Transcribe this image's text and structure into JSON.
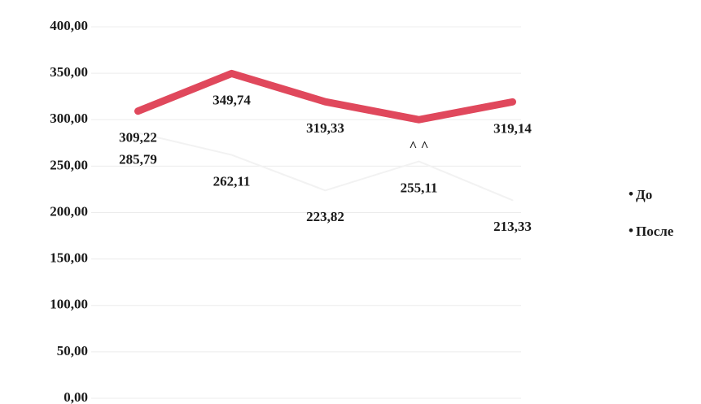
{
  "chart_data": {
    "type": "line",
    "categories": [
      null,
      null,
      null,
      null,
      null
    ],
    "series": [
      {
        "name": "До",
        "color": "#f2f2f2",
        "values": [
          285.79,
          262.11,
          223.82,
          255.11,
          213.33
        ],
        "value_labels": [
          "285,79",
          "262,11",
          "223,82",
          "255,11",
          "213,33"
        ]
      },
      {
        "name": "После",
        "color": "#e0485c",
        "values": [
          309.22,
          349.74,
          319.33,
          300,
          319.14
        ],
        "value_labels": [
          "309,22",
          "349,74",
          "319,33",
          "^ ^",
          "319,14"
        ]
      }
    ],
    "ylim": [
      0,
      400
    ],
    "yticks": [
      {
        "value": 0,
        "label": "0,00"
      },
      {
        "value": 50,
        "label": "50,00"
      },
      {
        "value": 100,
        "label": "100,00"
      },
      {
        "value": 150,
        "label": "150,00"
      },
      {
        "value": 200,
        "label": "200,00"
      },
      {
        "value": 250,
        "label": "250,00"
      },
      {
        "value": 300,
        "label": "300,00"
      },
      {
        "value": 350,
        "label": "350,00"
      },
      {
        "value": 400,
        "label": "400,00"
      }
    ],
    "grid": true,
    "legend": "right"
  }
}
